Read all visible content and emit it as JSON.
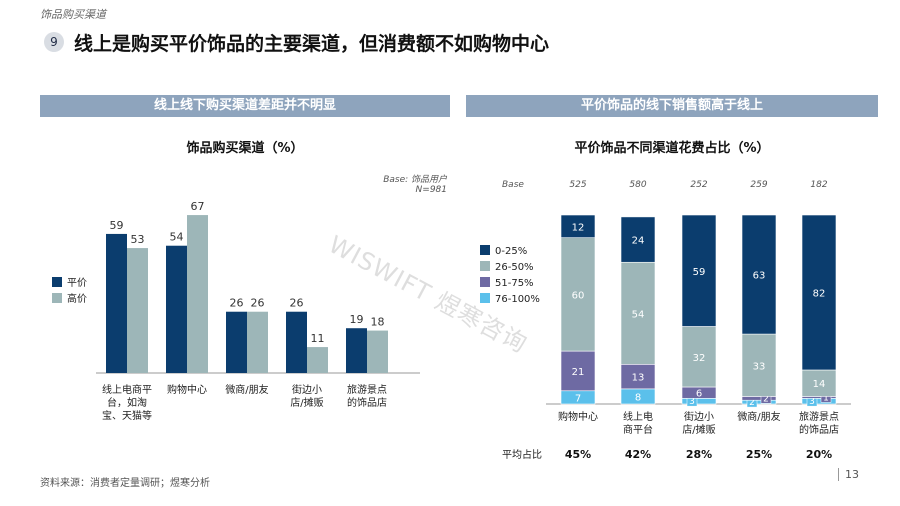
{
  "header": {
    "section_label": "饰品购买渠道",
    "badge_number": "9",
    "headline": "线上是购买平价饰品的主要渠道，但消费额不如购物中心"
  },
  "left_panel": {
    "banner": "线上线下购买渠道差距并不明显",
    "chart_title": "饰品购买渠道（%）",
    "base_label": "Base: 饰品用户",
    "base_n": "N=981"
  },
  "right_panel": {
    "banner": "平价饰品的线下销售额高于线上",
    "chart_title": "平价饰品不同渠道花费占比（%）",
    "base_row_label": "Base",
    "avg_row_label": "平均占比"
  },
  "watermark": "WISWIFT 煜寒咨询",
  "footer": {
    "source": "资料来源：消费者定量调研；煜寒分析",
    "page_number": "13"
  },
  "colors": {
    "dark_navy": "#0b3d6e",
    "gray_teal": "#9db6b8",
    "purple": "#6e6aa3",
    "light_blue": "#5bc0eb",
    "banner": "#8ea4bd"
  },
  "chart_data": [
    {
      "type": "bar",
      "title": "饰品购买渠道（%）",
      "categories": [
        "线上电商平台，如淘宝、天猫等",
        "购物中心",
        "微商/朋友",
        "街边小店/摊贩",
        "旅游景点的饰品店"
      ],
      "category_lines": [
        [
          "线上电商平",
          "台，如淘",
          "宝、天猫等"
        ],
        [
          "购物中心"
        ],
        [
          "微商/朋友"
        ],
        [
          "街边小",
          "店/摊贩"
        ],
        [
          "旅游景点",
          "的饰品店"
        ]
      ],
      "series": [
        {
          "name": "平价",
          "values": [
            59,
            54,
            26,
            26,
            19
          ]
        },
        {
          "name": "高价",
          "values": [
            53,
            67,
            26,
            11,
            18
          ]
        }
      ],
      "ylim": [
        0,
        70
      ],
      "legend_position": "left"
    },
    {
      "type": "bar",
      "stacked": true,
      "title": "平价饰品不同渠道花费占比（%）",
      "categories": [
        "购物中心",
        "线上电商平台",
        "街边小店/摊贩",
        "微商/朋友",
        "旅游景点的饰品店"
      ],
      "category_lines": [
        [
          "购物中心"
        ],
        [
          "线上电",
          "商平台"
        ],
        [
          "街边小",
          "店/摊贩"
        ],
        [
          "微商/朋友"
        ],
        [
          "旅游景点",
          "的饰品店"
        ]
      ],
      "base": [
        "525",
        "580",
        "252",
        "259",
        "182"
      ],
      "average_share": [
        "45%",
        "42%",
        "28%",
        "25%",
        "20%"
      ],
      "series": [
        {
          "name": "76-100%",
          "values": [
            7,
            8,
            3,
            2,
            3
          ]
        },
        {
          "name": "51-75%",
          "values": [
            21,
            13,
            6,
            2,
            1
          ]
        },
        {
          "name": "26-50%",
          "values": [
            60,
            54,
            32,
            33,
            14
          ]
        },
        {
          "name": "0-25%",
          "values": [
            12,
            24,
            59,
            63,
            82
          ]
        }
      ],
      "legend_order": [
        "0-25%",
        "26-50%",
        "51-75%",
        "76-100%"
      ],
      "ylim": [
        0,
        100
      ],
      "legend_position": "top-left"
    }
  ]
}
